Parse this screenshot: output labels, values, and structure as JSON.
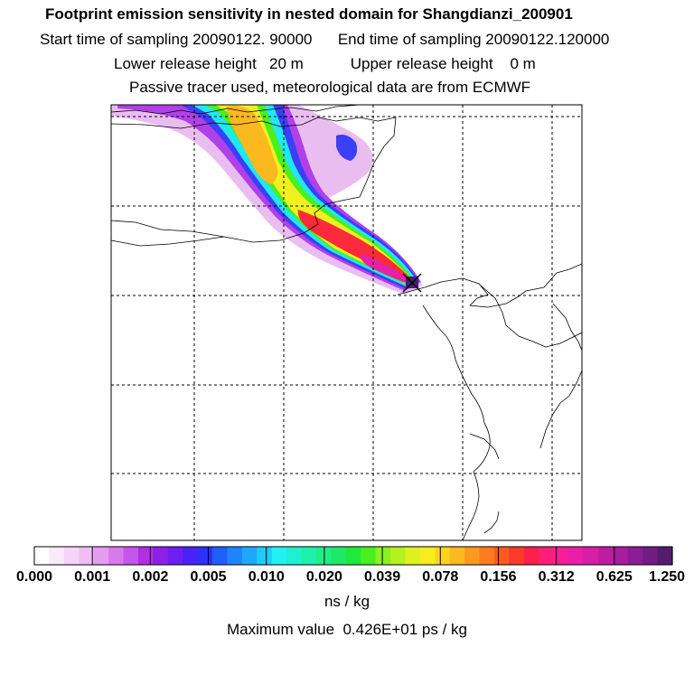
{
  "header": {
    "title": "Footprint emission sensitivity in nested domain for Shangdianzi_200901",
    "line2": "Start time of sampling 20090122. 90000      End time of sampling 20090122.120000",
    "line3": "Lower release height   20 m           Upper release height    0 m",
    "line4": "Passive tracer used, meteorological data are from ECMWF"
  },
  "colorbar": {
    "labels": [
      "0.000",
      "0.001",
      "0.002",
      "0.005",
      "0.010",
      "0.020",
      "0.039",
      "0.078",
      "0.156",
      "0.312",
      "0.625",
      "1.250"
    ],
    "colors": [
      "#ffffff",
      "#fbe8fb",
      "#f6d4f8",
      "#efbff4",
      "#e59cf0",
      "#d97aec",
      "#c556ea",
      "#b02ee6",
      "#8e1fe8",
      "#6c1ff0",
      "#4a22f5",
      "#2b30fa",
      "#1f5ffa",
      "#1f84fa",
      "#1fa8fa",
      "#1fcbfa",
      "#1ff2f0",
      "#1ff0d0",
      "#1ff0ad",
      "#1fee88",
      "#1fe866",
      "#1fea3a",
      "#4bee1f",
      "#8af01f",
      "#b6f01f",
      "#dff01f",
      "#f6ec1f",
      "#fcd41f",
      "#fcb81f",
      "#fc9a1f",
      "#fc7c1f",
      "#fc5a1f",
      "#fc3a2a",
      "#fc1f4a",
      "#fc1f78",
      "#f51f99",
      "#e81fa8",
      "#d61ea6",
      "#c01ca2",
      "#a81c9e",
      "#8c1c94",
      "#701c82",
      "#541c6e"
    ],
    "units": "ns / kg",
    "max_value_text": "Maximum value  0.426E+01 ps / kg"
  },
  "map": {
    "release_marker": "X",
    "plume_colors": {
      "faint": "#e8b6f0",
      "violet": "#b040e8",
      "blue": "#3a40f5",
      "cyan": "#1fe8f0",
      "green": "#4bee1f",
      "yellow": "#f0f01f",
      "orange": "#fcb81f",
      "red": "#fc2a3a",
      "magenta": "#c01ca2",
      "source": "#4a1c6e"
    }
  }
}
